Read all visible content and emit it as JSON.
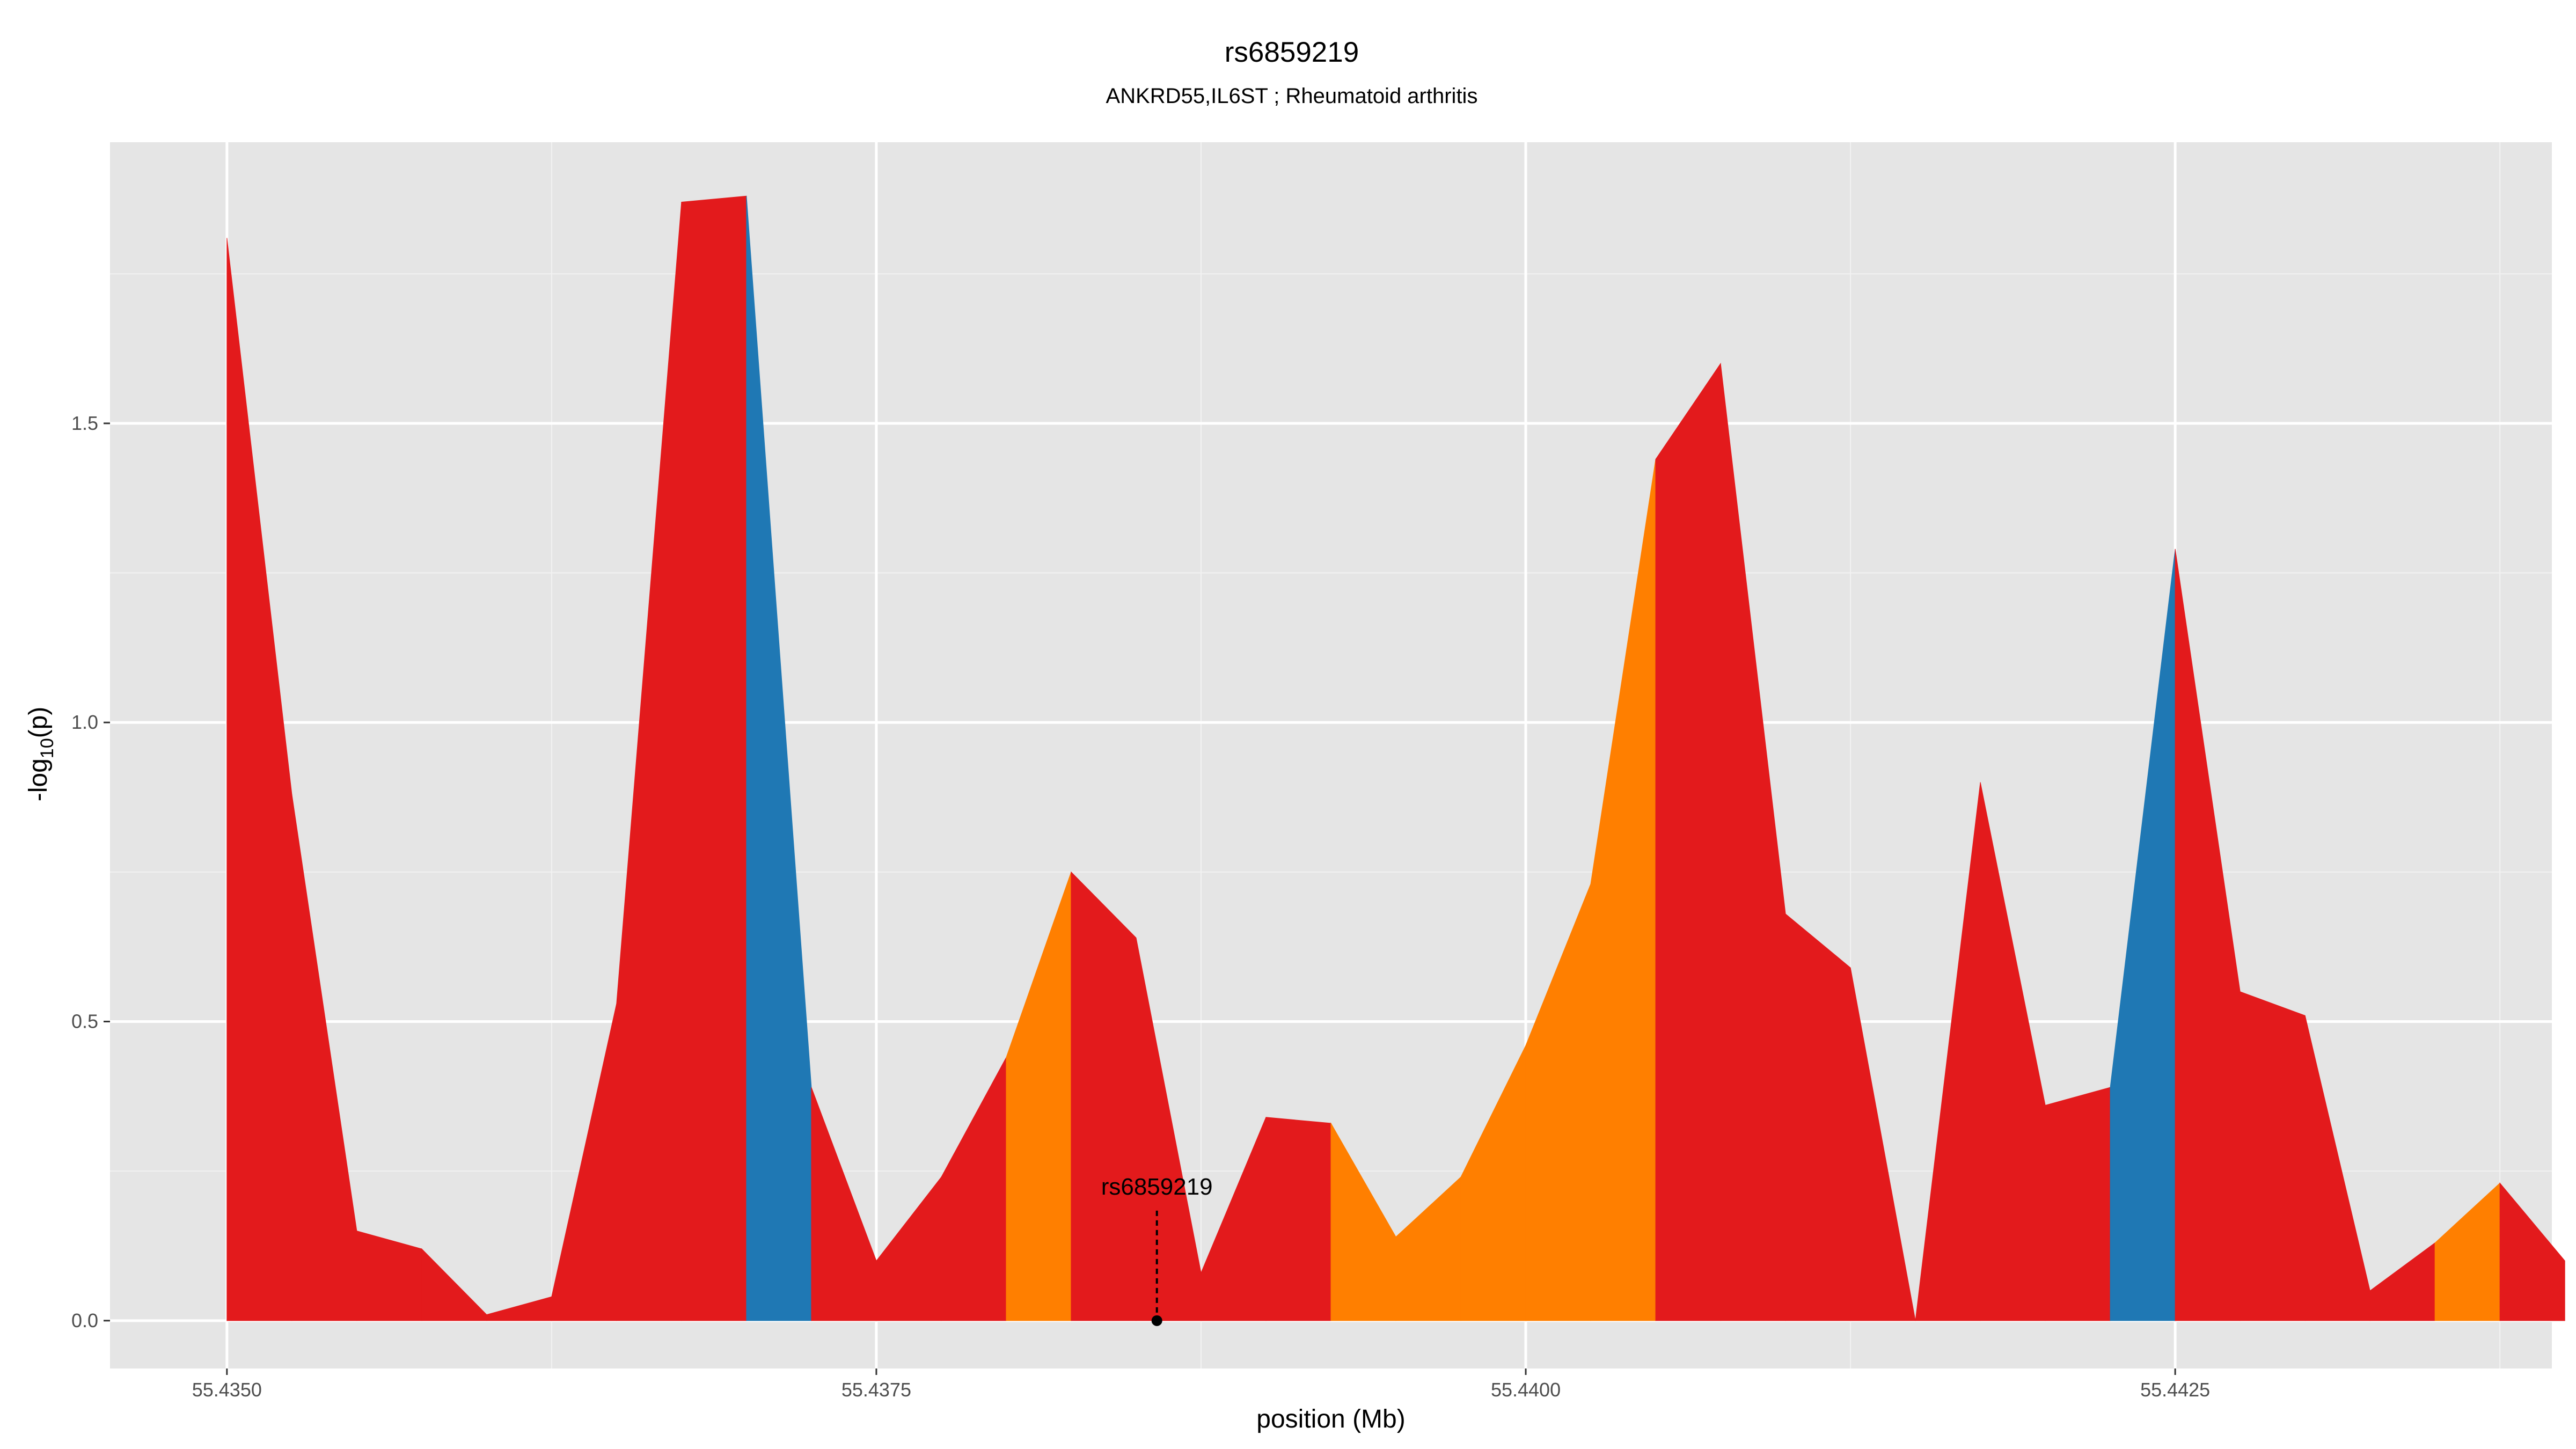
{
  "chart_data": {
    "type": "area",
    "title": "rs6859219",
    "subtitle": "ANKRD55,IL6ST ; Rheumatoid arthritis",
    "xlabel": "position (Mb)",
    "ylabel_main": "-log",
    "ylabel_sub": "10",
    "ylabel_tail": "(p)",
    "xlim": [
      55.43455,
      55.44395
    ],
    "ylim": [
      -0.08,
      1.97
    ],
    "x_ticks": [
      {
        "value": 55.435,
        "label": "55.4350"
      },
      {
        "value": 55.4375,
        "label": "55.4375"
      },
      {
        "value": 55.44,
        "label": "55.4400"
      },
      {
        "value": 55.4425,
        "label": "55.4425"
      }
    ],
    "x_minor": [
      55.43625,
      55.43875,
      55.44125,
      55.44375
    ],
    "y_ticks": [
      {
        "value": 0,
        "label": "0.0"
      },
      {
        "value": 0.5,
        "label": "0.5"
      },
      {
        "value": 1.0,
        "label": "1.0"
      },
      {
        "value": 1.5,
        "label": "1.5"
      }
    ],
    "y_minor": [
      0.25,
      0.75,
      1.25,
      1.75
    ],
    "colors": {
      "red": "#e31a1c",
      "blue": "#1f78b4",
      "orange": "#ff7f00"
    },
    "points": [
      {
        "x": 55.435,
        "y": 1.81
      },
      {
        "x": 55.43525,
        "y": 0.88
      },
      {
        "x": 55.4355,
        "y": 0.15
      },
      {
        "x": 55.43575,
        "y": 0.12
      },
      {
        "x": 55.436,
        "y": 0.01
      },
      {
        "x": 55.43625,
        "y": 0.04
      },
      {
        "x": 55.4365,
        "y": 0.53
      },
      {
        "x": 55.43675,
        "y": 1.87
      },
      {
        "x": 55.437,
        "y": 1.88
      },
      {
        "x": 55.43725,
        "y": 0.39
      },
      {
        "x": 55.4375,
        "y": 0.1
      },
      {
        "x": 55.43775,
        "y": 0.24
      },
      {
        "x": 55.438,
        "y": 0.44
      },
      {
        "x": 55.43825,
        "y": 0.75
      },
      {
        "x": 55.4385,
        "y": 0.64
      },
      {
        "x": 55.43875,
        "y": 0.08
      },
      {
        "x": 55.439,
        "y": 0.34
      },
      {
        "x": 55.43925,
        "y": 0.33
      },
      {
        "x": 55.4395,
        "y": 0.14
      },
      {
        "x": 55.43975,
        "y": 0.24
      },
      {
        "x": 55.44,
        "y": 0.46
      },
      {
        "x": 55.44025,
        "y": 0.73
      },
      {
        "x": 55.4405,
        "y": 1.44
      },
      {
        "x": 55.44075,
        "y": 1.6
      },
      {
        "x": 55.441,
        "y": 0.68
      },
      {
        "x": 55.44125,
        "y": 0.59
      },
      {
        "x": 55.4415,
        "y": 0.0
      },
      {
        "x": 55.44175,
        "y": 0.9
      },
      {
        "x": 55.442,
        "y": 0.36
      },
      {
        "x": 55.44225,
        "y": 0.39
      },
      {
        "x": 55.4425,
        "y": 1.29
      },
      {
        "x": 55.44275,
        "y": 0.55
      },
      {
        "x": 55.443,
        "y": 0.51
      },
      {
        "x": 55.44325,
        "y": 0.05
      },
      {
        "x": 55.4435,
        "y": 0.13
      },
      {
        "x": 55.44375,
        "y": 0.23
      },
      {
        "x": 55.444,
        "y": 0.1
      }
    ],
    "segment_colors": [
      "red",
      "red",
      "red",
      "red",
      "red",
      "red",
      "red",
      "red",
      "blue",
      "red",
      "red",
      "red",
      "orange",
      "red",
      "red",
      "red",
      "red",
      "orange",
      "orange",
      "orange",
      "orange",
      "orange",
      "red",
      "red",
      "red",
      "red",
      "red",
      "red",
      "red",
      "blue",
      "red",
      "red",
      "red",
      "red",
      "orange",
      "red"
    ],
    "highlight_snp": {
      "label": "rs6859219",
      "x": 55.43858,
      "y": 0
    }
  }
}
